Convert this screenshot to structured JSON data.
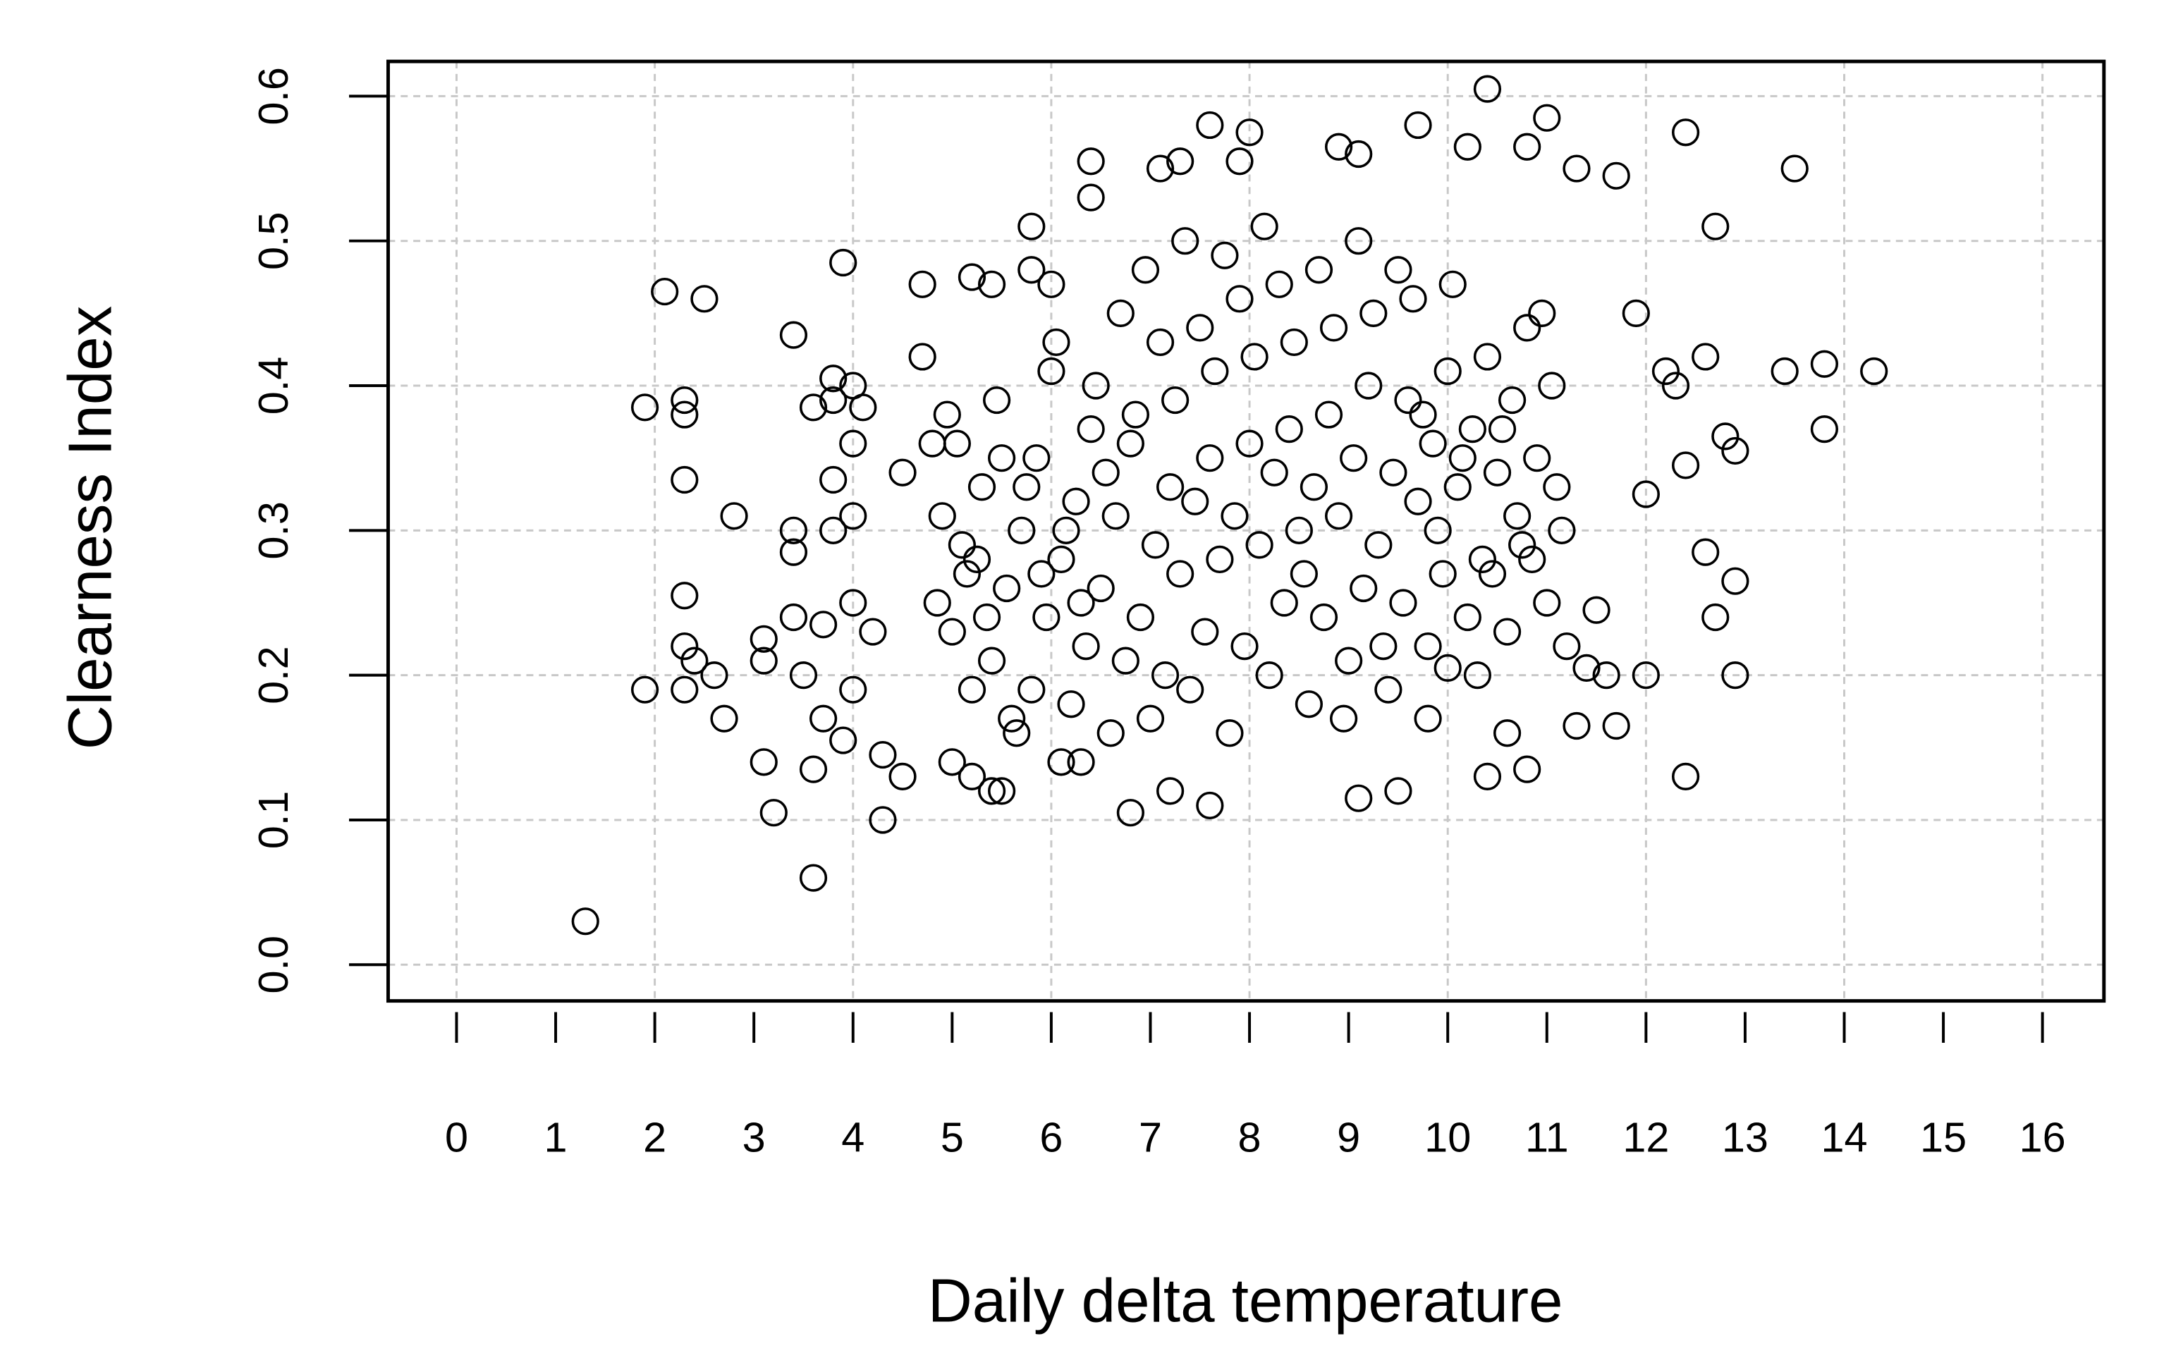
{
  "chart_data": {
    "type": "scatter",
    "x_label": "Daily delta temperature",
    "y_label": "Clearness Index",
    "xlim": [
      -0.69,
      16.62
    ],
    "ylim": [
      -0.025,
      0.624
    ],
    "xticks": [
      0,
      1,
      2,
      3,
      4,
      5,
      6,
      7,
      8,
      9,
      10,
      11,
      12,
      13,
      14,
      15,
      16
    ],
    "yticks": [
      {
        "value": 0,
        "label": "0.0"
      },
      0.1,
      0.2,
      0.3,
      0.4,
      0.5,
      0.6
    ],
    "grid": true,
    "series": [
      {
        "color": "#000000",
        "x": [
          1.3,
          1.9,
          1.9,
          2.1,
          2.3,
          2.3,
          2.3,
          2.3,
          2.3,
          2.3,
          2.4,
          2.5,
          2.6,
          2.7,
          2.8,
          3.1,
          3.1,
          3.1,
          3.2,
          3.4,
          3.4,
          3.4,
          3.4,
          3.5,
          3.6,
          3.6,
          3.6,
          3.7,
          3.7,
          3.8,
          3.8,
          3.8,
          3.8,
          3.9,
          3.9,
          4.0,
          4.0,
          4.0,
          4.0,
          4.0,
          4.1,
          4.2,
          4.3,
          4.3,
          4.5,
          4.5,
          4.7,
          4.7,
          4.8,
          5.2,
          5.4,
          5.8,
          5.8,
          6.0,
          6.4,
          6.4,
          7.1,
          7.3,
          7.6,
          7.9,
          8.0,
          8.9,
          9.1,
          9.7,
          10.4,
          10.2,
          10.8,
          11.0,
          11.3,
          11.7,
          12.4,
          12.7,
          13.5,
          13.4,
          13.8,
          14.3,
          13.8,
          12.8,
          12.9,
          12.6,
          12.4,
          12.6,
          12.9,
          12.7,
          12.9,
          12.4,
          12.0,
          11.7,
          11.3,
          11.5,
          12.0,
          12.3,
          12.2,
          11.9,
          11.6,
          11.4,
          10.8,
          10.4,
          9.5,
          9.1,
          7.6,
          7.2,
          6.8,
          5.4,
          5.5,
          5.2,
          5.0,
          6.1,
          6.3,
          10.0,
          9.8,
          10.6,
          5.0,
          5.15,
          4.9,
          5.05,
          5.2,
          4.85,
          5.1,
          4.95,
          5.4,
          5.55,
          5.3,
          5.45,
          5.6,
          5.25,
          5.5,
          5.35,
          5.8,
          5.95,
          5.7,
          5.85,
          6.0,
          5.65,
          5.9,
          5.75,
          6.2,
          6.35,
          6.1,
          6.25,
          6.4,
          6.05,
          6.3,
          6.15,
          6.6,
          6.75,
          6.5,
          6.65,
          6.8,
          6.45,
          6.7,
          6.55,
          7.0,
          7.15,
          6.9,
          7.05,
          7.2,
          6.85,
          7.1,
          6.95,
          7.4,
          7.55,
          7.3,
          7.45,
          7.6,
          7.25,
          7.5,
          7.35,
          7.8,
          7.95,
          7.7,
          7.85,
          8.0,
          7.65,
          7.9,
          7.75,
          8.2,
          8.35,
          8.1,
          8.25,
          8.4,
          8.05,
          8.3,
          8.15,
          8.6,
          8.75,
          8.5,
          8.65,
          8.8,
          8.45,
          8.7,
          8.55,
          9.0,
          9.15,
          8.9,
          9.05,
          9.2,
          8.85,
          9.1,
          8.95,
          9.4,
          9.55,
          9.3,
          9.45,
          9.6,
          9.25,
          9.5,
          9.35,
          9.8,
          9.95,
          9.7,
          9.85,
          10.0,
          9.65,
          9.9,
          9.75,
          10.2,
          10.35,
          10.1,
          10.25,
          10.4,
          10.05,
          10.3,
          10.15,
          10.6,
          10.75,
          10.5,
          10.65,
          10.8,
          10.45,
          10.7,
          10.55,
          11.0,
          11.15,
          10.9,
          11.05,
          11.2,
          10.85,
          11.1,
          10.95
        ],
        "y": [
          0.03,
          0.385,
          0.19,
          0.465,
          0.39,
          0.38,
          0.335,
          0.255,
          0.22,
          0.19,
          0.21,
          0.46,
          0.2,
          0.17,
          0.31,
          0.14,
          0.225,
          0.21,
          0.105,
          0.435,
          0.3,
          0.285,
          0.24,
          0.2,
          0.135,
          0.06,
          0.385,
          0.235,
          0.17,
          0.405,
          0.39,
          0.335,
          0.3,
          0.485,
          0.155,
          0.4,
          0.36,
          0.31,
          0.25,
          0.19,
          0.385,
          0.23,
          0.1,
          0.145,
          0.13,
          0.34,
          0.47,
          0.42,
          0.36,
          0.475,
          0.47,
          0.51,
          0.48,
          0.47,
          0.555,
          0.53,
          0.55,
          0.555,
          0.58,
          0.555,
          0.575,
          0.565,
          0.56,
          0.58,
          0.605,
          0.565,
          0.565,
          0.585,
          0.55,
          0.545,
          0.575,
          0.51,
          0.55,
          0.41,
          0.415,
          0.41,
          0.37,
          0.365,
          0.355,
          0.42,
          0.345,
          0.285,
          0.265,
          0.24,
          0.2,
          0.13,
          0.2,
          0.165,
          0.165,
          0.245,
          0.325,
          0.4,
          0.41,
          0.45,
          0.2,
          0.205,
          0.135,
          0.13,
          0.12,
          0.115,
          0.11,
          0.12,
          0.105,
          0.12,
          0.12,
          0.13,
          0.14,
          0.14,
          0.14,
          0.205,
          0.17,
          0.16,
          0.23,
          0.27,
          0.31,
          0.36,
          0.19,
          0.25,
          0.29,
          0.38,
          0.21,
          0.26,
          0.33,
          0.39,
          0.17,
          0.28,
          0.35,
          0.24,
          0.19,
          0.24,
          0.3,
          0.35,
          0.41,
          0.16,
          0.27,
          0.33,
          0.18,
          0.22,
          0.28,
          0.32,
          0.37,
          0.43,
          0.25,
          0.3,
          0.16,
          0.21,
          0.26,
          0.31,
          0.36,
          0.4,
          0.45,
          0.34,
          0.17,
          0.2,
          0.24,
          0.29,
          0.33,
          0.38,
          0.43,
          0.48,
          0.19,
          0.23,
          0.27,
          0.32,
          0.35,
          0.39,
          0.44,
          0.5,
          0.16,
          0.22,
          0.28,
          0.31,
          0.36,
          0.41,
          0.46,
          0.49,
          0.2,
          0.25,
          0.29,
          0.34,
          0.37,
          0.42,
          0.47,
          0.51,
          0.18,
          0.24,
          0.3,
          0.33,
          0.38,
          0.43,
          0.48,
          0.27,
          0.21,
          0.26,
          0.31,
          0.35,
          0.4,
          0.44,
          0.5,
          0.17,
          0.19,
          0.25,
          0.29,
          0.34,
          0.39,
          0.45,
          0.48,
          0.22,
          0.22,
          0.27,
          0.32,
          0.36,
          0.41,
          0.46,
          0.3,
          0.38,
          0.24,
          0.28,
          0.33,
          0.37,
          0.42,
          0.47,
          0.2,
          0.35,
          0.23,
          0.29,
          0.34,
          0.39,
          0.44,
          0.27,
          0.31,
          0.37,
          0.25,
          0.3,
          0.35,
          0.4,
          0.22,
          0.28,
          0.33,
          0.45
        ]
      }
    ]
  }
}
